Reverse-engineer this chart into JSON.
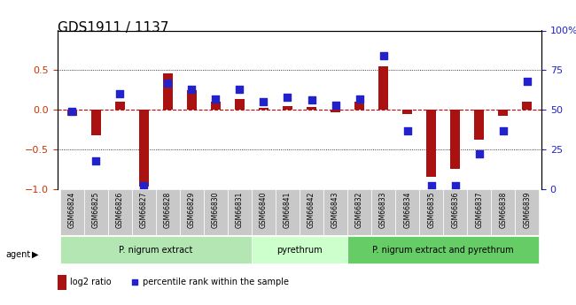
{
  "title": "GDS1911 / 1137",
  "categories": [
    "GSM66824",
    "GSM66825",
    "GSM66826",
    "GSM66827",
    "GSM66828",
    "GSM66829",
    "GSM66830",
    "GSM66831",
    "GSM66840",
    "GSM66841",
    "GSM66842",
    "GSM66843",
    "GSM66832",
    "GSM66833",
    "GSM66834",
    "GSM66835",
    "GSM66836",
    "GSM66837",
    "GSM66838",
    "GSM66839"
  ],
  "log2_ratio": [
    -0.08,
    -0.32,
    0.1,
    -0.97,
    0.46,
    0.25,
    0.1,
    0.14,
    0.03,
    0.05,
    0.04,
    -0.03,
    0.1,
    0.55,
    -0.05,
    -0.85,
    -0.75,
    -0.38,
    -0.08,
    0.1
  ],
  "pct_rank": [
    49,
    18,
    60,
    2,
    67,
    63,
    57,
    63,
    55,
    58,
    56,
    53,
    57,
    84,
    37,
    2,
    2,
    22,
    37,
    68
  ],
  "groups": [
    {
      "label": "P. nigrum extract",
      "start": 0,
      "end": 8,
      "color": "#b3e6b3"
    },
    {
      "label": "pyrethrum",
      "start": 8,
      "end": 12,
      "color": "#ccffcc"
    },
    {
      "label": "P. nigrum extract and pyrethrum",
      "start": 12,
      "end": 20,
      "color": "#66cc66"
    }
  ],
  "bar_color": "#aa1111",
  "dot_color": "#2222cc",
  "zero_line_color": "#cc0000",
  "ylim_left": [
    -1,
    1
  ],
  "ylim_right": [
    0,
    100
  ],
  "yticks_left": [
    -1,
    -0.5,
    0,
    0.5
  ],
  "yticks_right": [
    0,
    25,
    50,
    75,
    100
  ],
  "hlines": [
    -0.5,
    0,
    0.5
  ],
  "bg_color": "#ffffff",
  "bar_width": 0.4,
  "dot_size": 40
}
